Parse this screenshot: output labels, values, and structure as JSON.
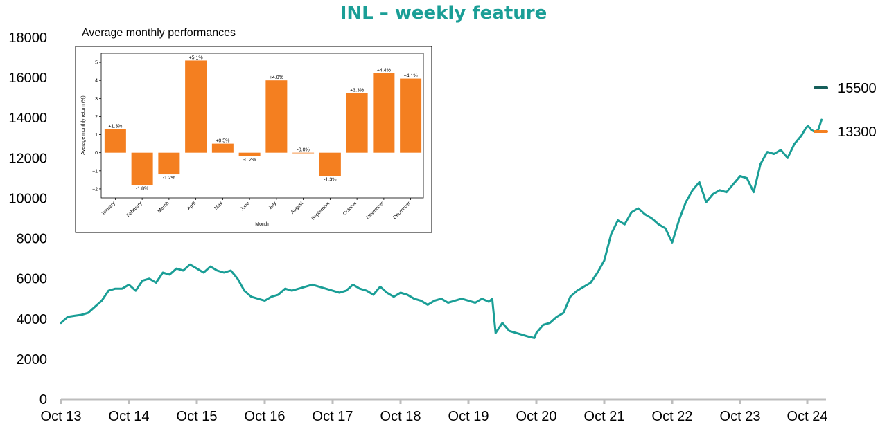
{
  "title": "INL – weekly feature",
  "colors": {
    "accent": "#1a9e96",
    "line": "#1a9e96",
    "legend_dark": "#155e5a",
    "bars": "#f47f20",
    "axis": "#bdbdbd"
  },
  "legend": [
    {
      "label": "15500",
      "color": "#155e5a"
    },
    {
      "label": "13300",
      "color": "#f47f20"
    }
  ],
  "chart_data": [
    {
      "type": "line",
      "title": "INL – weekly feature",
      "xlabel": "",
      "ylabel": "",
      "ylim": [
        0,
        18000
      ],
      "yticks": [
        0,
        2000,
        4000,
        6000,
        8000,
        10000,
        12000,
        14000,
        16000,
        18000
      ],
      "xticks": [
        "Oct 13",
        "Oct 14",
        "Oct 15",
        "Oct 16",
        "Oct 17",
        "Oct 18",
        "Oct 19",
        "Oct 20",
        "Oct 21",
        "Oct 22",
        "Oct 23",
        "Oct 24"
      ],
      "grid": false,
      "legend_position": "right",
      "series": [
        {
          "color": "#1a9e96",
          "x": [
            0,
            0.1,
            0.2,
            0.3,
            0.4,
            0.5,
            0.6,
            0.7,
            0.8,
            0.9,
            1.0,
            1.1,
            1.2,
            1.3,
            1.4,
            1.5,
            1.6,
            1.7,
            1.8,
            1.9,
            2.0,
            2.1,
            2.2,
            2.3,
            2.4,
            2.5,
            2.6,
            2.7,
            2.8,
            2.9,
            3.0,
            3.1,
            3.2,
            3.3,
            3.4,
            3.5,
            3.6,
            3.7,
            3.8,
            3.9,
            4.0,
            4.1,
            4.2,
            4.3,
            4.4,
            4.5,
            4.6,
            4.7,
            4.8,
            4.9,
            5.0,
            5.1,
            5.2,
            5.3,
            5.4,
            5.5,
            5.6,
            5.7,
            5.8,
            5.9,
            6.0,
            6.1,
            6.2,
            6.3,
            6.35,
            6.4,
            6.5,
            6.6,
            6.7,
            6.8,
            6.9,
            6.97,
            7.0,
            7.1,
            7.2,
            7.3,
            7.4,
            7.5,
            7.6,
            7.7,
            7.8,
            7.9,
            8.0,
            8.1,
            8.2,
            8.3,
            8.4,
            8.5,
            8.6,
            8.7,
            8.8,
            8.9,
            8.97,
            9.0,
            9.1,
            9.2,
            9.3,
            9.4,
            9.5,
            9.6,
            9.7,
            9.8,
            9.9,
            10.0,
            10.1,
            10.2,
            10.3,
            10.4,
            10.5,
            10.6,
            10.7,
            10.8,
            10.9,
            10.97,
            11.0,
            11.05,
            11.1,
            11.15,
            11.2
          ],
          "values": [
            3800,
            4100,
            4150,
            4200,
            4300,
            4600,
            4900,
            5400,
            5500,
            5500,
            5700,
            5400,
            5900,
            6000,
            5800,
            6300,
            6200,
            6500,
            6400,
            6700,
            6500,
            6300,
            6600,
            6400,
            6300,
            6400,
            6000,
            5400,
            5100,
            5000,
            4900,
            5100,
            5200,
            5500,
            5400,
            5500,
            5600,
            5700,
            5600,
            5500,
            5400,
            5300,
            5400,
            5700,
            5500,
            5400,
            5200,
            5600,
            5300,
            5100,
            5300,
            5200,
            5000,
            4900,
            4700,
            4900,
            5000,
            4800,
            4900,
            5000,
            4900,
            4800,
            5000,
            4850,
            5000,
            3300,
            3800,
            3400,
            3300,
            3200,
            3100,
            3050,
            3300,
            3700,
            3800,
            4100,
            4300,
            5100,
            5400,
            5600,
            5800,
            6300,
            6900,
            8200,
            8900,
            8700,
            9300,
            9500,
            9200,
            9000,
            8700,
            8500,
            8000,
            7800,
            8900,
            9800,
            10400,
            10800,
            9800,
            10200,
            10400,
            10300,
            10700,
            11100,
            11000,
            10300,
            11700,
            12300,
            12200,
            12400,
            12000,
            12700,
            13100,
            13500,
            13600,
            13400,
            13300,
            13400,
            13900
          ]
        }
      ]
    },
    {
      "type": "bar",
      "title": "Average monthly performances",
      "xlabel": "Month",
      "ylabel": "Average monthly return (%)",
      "ylim": [
        -2.5,
        5.5
      ],
      "yticks": [
        -2,
        -1,
        0,
        1,
        2,
        3,
        4,
        5
      ],
      "categories": [
        "January",
        "February",
        "March",
        "April",
        "May",
        "June",
        "July",
        "August",
        "September",
        "October",
        "November",
        "December"
      ],
      "values": [
        1.3,
        -1.8,
        -1.2,
        5.1,
        0.5,
        -0.2,
        4.0,
        -0.0,
        -1.3,
        3.3,
        4.4,
        4.1
      ],
      "labels": [
        "+1.3%",
        "-1.8%",
        "-1.2%",
        "+5.1%",
        "+0.5%",
        "-0.2%",
        "+4.0%",
        "-0.0%",
        "-1.3%",
        "+3.3%",
        "+4.4%",
        "+4.1%"
      ],
      "grid": false
    }
  ]
}
